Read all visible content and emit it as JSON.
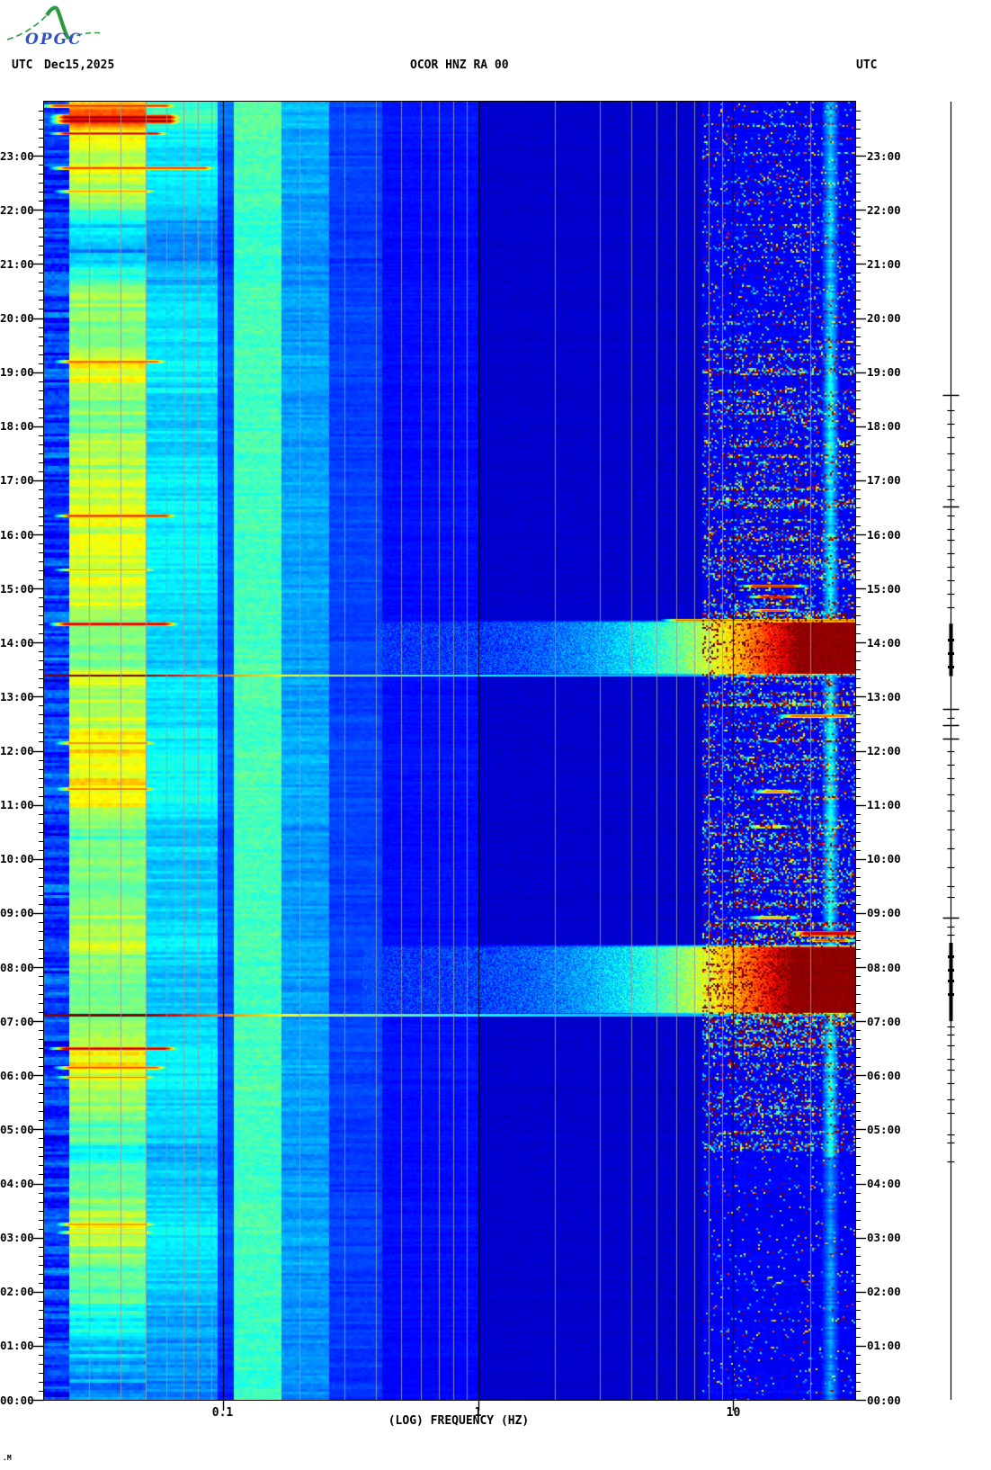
{
  "header": {
    "logo_text": "OPGC",
    "utc_left": "UTC",
    "date": "Dec15,2025",
    "title": "OCOR HNZ RA 00",
    "utc_right": "UTC"
  },
  "footer_mark": ".M",
  "chart_data": {
    "type": "heatmap",
    "title": "OCOR HNZ RA 00",
    "xlabel": "(LOG) FREQUENCY (HZ)",
    "x_scale": "log",
    "freq_range_hz": [
      0.02,
      30
    ],
    "time_range_hours": [
      0,
      24
    ],
    "hour_labels": [
      "00:00",
      "01:00",
      "02:00",
      "03:00",
      "04:00",
      "05:00",
      "06:00",
      "07:00",
      "08:00",
      "09:00",
      "10:00",
      "11:00",
      "12:00",
      "13:00",
      "14:00",
      "15:00",
      "16:00",
      "17:00",
      "18:00",
      "19:00",
      "20:00",
      "21:00",
      "22:00",
      "23:00"
    ],
    "freq_ticks": [
      {
        "label": "0.1",
        "f": 0.1
      },
      {
        "label": "1",
        "f": 1
      },
      {
        "label": "10",
        "f": 10
      }
    ],
    "minor_gridlines_hz": [
      0.03,
      0.04,
      0.05,
      0.06,
      0.07,
      0.08,
      0.09,
      0.2,
      0.3,
      0.4,
      0.5,
      0.6,
      0.7,
      0.8,
      0.9,
      2,
      3,
      4,
      5,
      6,
      7,
      8,
      9,
      20
    ],
    "major_gridlines_hz": [
      0.1,
      1,
      10
    ],
    "colormap": "jet",
    "bands": [
      {
        "f0": 0.02,
        "f1": 0.025,
        "base": 0.18,
        "env": 0.0,
        "var": 0.25,
        "cw": 4,
        "ch": 3,
        "roww": 0.8
      },
      {
        "f0": 0.025,
        "f1": 0.05,
        "base": 0.0,
        "env": 1.0,
        "var": 0.18,
        "cw": 5,
        "ch": 4,
        "roww": 0.8
      },
      {
        "f0": 0.05,
        "f1": 0.095,
        "base": 0.16,
        "env": 0.35,
        "var": 0.12,
        "cw": 5,
        "ch": 3,
        "roww": 0.75
      },
      {
        "f0": 0.095,
        "f1": 0.11,
        "base": 0.12,
        "env": 0.15,
        "var": 0.06,
        "cw": 4,
        "ch": 3,
        "roww": 0.7
      },
      {
        "f0": 0.11,
        "f1": 0.17,
        "base": 0.4,
        "env": 0.08,
        "var": 0.11,
        "cw": 4,
        "ch": 3,
        "roww": 0.5
      },
      {
        "f0": 0.17,
        "f1": 0.26,
        "base": 0.24,
        "env": 0.08,
        "var": 0.1,
        "cw": 4,
        "ch": 3,
        "roww": 0.7
      },
      {
        "f0": 0.26,
        "f1": 0.42,
        "base": 0.16,
        "env": 0.05,
        "var": 0.07,
        "cw": 4,
        "ch": 3,
        "roww": 0.7
      },
      {
        "f0": 0.42,
        "f1": 1.0,
        "base": 0.115,
        "env": 0.04,
        "var": 0.05,
        "cw": 3,
        "ch": 2,
        "roww": 0.6
      },
      {
        "f0": 1.0,
        "f1": 7.5,
        "base": 0.075,
        "env": 0.0,
        "var": 0.04,
        "cw": 3,
        "ch": 2,
        "roww": 0.4
      },
      {
        "f0": 7.5,
        "f1": 30.01,
        "base": 0.12,
        "env": 0.0,
        "var": 0.07,
        "cw": 2,
        "ch": 2,
        "roww": 0.5
      }
    ],
    "low_band_envelope": [
      [
        0.0,
        0.26
      ],
      [
        0.5,
        0.28
      ],
      [
        1.0,
        0.33
      ],
      [
        1.5,
        0.38
      ],
      [
        2.0,
        0.45
      ],
      [
        2.5,
        0.5
      ],
      [
        3.0,
        0.55
      ],
      [
        3.2,
        0.62
      ],
      [
        3.4,
        0.55
      ],
      [
        4.0,
        0.42
      ],
      [
        4.5,
        0.4
      ],
      [
        5.0,
        0.48
      ],
      [
        5.5,
        0.53
      ],
      [
        6.0,
        0.58
      ],
      [
        6.3,
        0.62
      ],
      [
        6.7,
        0.55
      ],
      [
        7.0,
        0.52
      ],
      [
        7.5,
        0.45
      ],
      [
        8.0,
        0.5
      ],
      [
        8.4,
        0.55
      ],
      [
        9.0,
        0.52
      ],
      [
        9.5,
        0.48
      ],
      [
        10.0,
        0.5
      ],
      [
        10.5,
        0.45
      ],
      [
        11.0,
        0.6
      ],
      [
        11.3,
        0.65
      ],
      [
        11.7,
        0.6
      ],
      [
        12.0,
        0.65
      ],
      [
        12.4,
        0.6
      ],
      [
        12.8,
        0.52
      ],
      [
        13.2,
        0.58
      ],
      [
        13.6,
        0.52
      ],
      [
        14.0,
        0.5
      ],
      [
        14.5,
        0.55
      ],
      [
        15.0,
        0.58
      ],
      [
        15.5,
        0.6
      ],
      [
        16.0,
        0.58
      ],
      [
        16.5,
        0.6
      ],
      [
        17.0,
        0.55
      ],
      [
        17.5,
        0.52
      ],
      [
        18.0,
        0.5
      ],
      [
        18.5,
        0.48
      ],
      [
        19.0,
        0.62
      ],
      [
        19.3,
        0.6
      ],
      [
        19.7,
        0.5
      ],
      [
        20.0,
        0.52
      ],
      [
        20.4,
        0.55
      ],
      [
        20.8,
        0.4
      ],
      [
        21.2,
        0.3
      ],
      [
        21.6,
        0.32
      ],
      [
        22.0,
        0.45
      ],
      [
        22.4,
        0.55
      ],
      [
        22.7,
        0.6
      ],
      [
        23.0,
        0.52
      ],
      [
        23.3,
        0.6
      ],
      [
        23.5,
        0.68
      ],
      [
        23.7,
        0.85
      ],
      [
        23.85,
        0.75
      ],
      [
        24.0,
        0.65
      ]
    ],
    "streaks": [
      {
        "t": 23.93,
        "f0": 0.022,
        "f1": 0.06,
        "v": 0.9
      },
      {
        "t": 23.72,
        "f0": 0.024,
        "f1": 0.062,
        "v": 1.0,
        "w": 0.05
      },
      {
        "t": 23.65,
        "f0": 0.024,
        "f1": 0.062,
        "v": 1.0,
        "w": 0.05
      },
      {
        "t": 23.42,
        "f0": 0.024,
        "f1": 0.055,
        "v": 0.95
      },
      {
        "t": 22.78,
        "f0": 0.024,
        "f1": 0.085,
        "v": 0.88
      },
      {
        "t": 22.35,
        "f0": 0.025,
        "f1": 0.05,
        "v": 0.75
      },
      {
        "t": 19.2,
        "f0": 0.025,
        "f1": 0.055,
        "v": 0.85
      },
      {
        "t": 16.35,
        "f0": 0.025,
        "f1": 0.06,
        "v": 0.9
      },
      {
        "t": 15.35,
        "f0": 0.025,
        "f1": 0.05,
        "v": 0.72
      },
      {
        "t": 14.35,
        "f0": 0.024,
        "f1": 0.06,
        "v": 1.0
      },
      {
        "t": 12.15,
        "f0": 0.025,
        "f1": 0.05,
        "v": 0.8
      },
      {
        "t": 11.3,
        "f0": 0.025,
        "f1": 0.05,
        "v": 0.82
      },
      {
        "t": 6.5,
        "f0": 0.024,
        "f1": 0.06,
        "v": 1.0
      },
      {
        "t": 6.15,
        "f0": 0.025,
        "f1": 0.055,
        "v": 0.85
      },
      {
        "t": 5.97,
        "f0": 0.025,
        "f1": 0.05,
        "v": 0.78
      },
      {
        "t": 3.25,
        "f0": 0.025,
        "f1": 0.05,
        "v": 0.78
      },
      {
        "t": 3.1,
        "f0": 0.025,
        "f1": 0.05,
        "v": 0.7
      },
      {
        "t": 15.05,
        "f0": 12,
        "f1": 17,
        "v": 0.9
      },
      {
        "t": 14.85,
        "f0": 13,
        "f1": 16,
        "v": 0.95
      },
      {
        "t": 14.6,
        "f0": 13,
        "f1": 15.5,
        "v": 0.85
      },
      {
        "t": 14.42,
        "f0": 6,
        "f1": 30,
        "v": 0.8
      },
      {
        "t": 12.65,
        "f0": 17,
        "f1": 27,
        "v": 0.85
      },
      {
        "t": 11.25,
        "f0": 13.5,
        "f1": 16,
        "v": 0.8
      },
      {
        "t": 10.6,
        "f0": 12.5,
        "f1": 15,
        "v": 0.7
      },
      {
        "t": 8.92,
        "f0": 13,
        "f1": 16,
        "v": 0.75
      },
      {
        "t": 8.63,
        "f0": 19,
        "f1": 30,
        "v": 1.0,
        "w": 0.05
      },
      {
        "t": 8.5,
        "f0": 21,
        "f1": 27,
        "v": 0.85
      }
    ],
    "onset_profile": [
      [
        0.02,
        1.0
      ],
      [
        0.05,
        1.0
      ],
      [
        0.065,
        0.88
      ],
      [
        0.1,
        0.75
      ],
      [
        0.2,
        0.6
      ],
      [
        0.35,
        0.52
      ],
      [
        0.7,
        0.42
      ],
      [
        1.5,
        0.36
      ],
      [
        3.0,
        0.32
      ],
      [
        6.0,
        0.3
      ]
    ],
    "events": [
      {
        "t0": 13.4,
        "t1": 14.43,
        "fmin": 0.4,
        "fsat": 18,
        "peak": 1.0,
        "onset": 13.4
      },
      {
        "t0": 7.13,
        "t1": 8.43,
        "fmin": 0.35,
        "fsat": 17,
        "peak": 1.0,
        "onset": 7.12
      }
    ],
    "hf_column": {
      "f0": 22,
      "f1": 26,
      "add": 0.27,
      "activity": [
        {
          "t0": 0,
          "t1": 4.5,
          "m": 0.6
        },
        {
          "t0": 4.5,
          "t1": 19.5,
          "m": 1.0
        },
        {
          "t0": 19.5,
          "t1": 24,
          "m": 0.8
        }
      ]
    },
    "speckle": {
      "fmin": 7.5,
      "windows": [
        {
          "t0": 0,
          "t1": 4.6,
          "d": 0.05,
          "a": 0.5
        },
        {
          "t0": 4.6,
          "t1": 19.6,
          "d": 0.26,
          "a": 0.62
        },
        {
          "t0": 19.6,
          "t1": 24,
          "d": 0.14,
          "a": 0.5
        }
      ],
      "event_near_h": 0.6,
      "event_boost": 1.8
    },
    "event_strip": {
      "bars": [
        18.57,
        16.52,
        12.78,
        12.48,
        12.23,
        8.92
      ],
      "ticks": [
        18.3,
        18.05,
        17.8,
        17.5,
        17.2,
        16.9,
        16.65,
        16.35,
        16.1,
        15.9,
        15.65,
        15.4,
        15.15,
        14.9,
        14.65,
        12.6,
        12.0,
        11.75,
        11.5,
        11.2,
        10.9,
        10.55,
        10.2,
        9.85,
        9.5,
        9.3,
        8.75,
        8.6,
        6.9,
        6.75,
        6.55,
        6.3,
        6.1,
        5.85,
        5.55,
        5.3,
        4.9,
        4.75,
        4.4
      ],
      "thick": [
        [
          13.38,
          14.35
        ],
        [
          7.0,
          8.45
        ]
      ],
      "knots": [
        7.5,
        7.75,
        7.95,
        8.2,
        13.55,
        13.8,
        14.05
      ]
    }
  }
}
